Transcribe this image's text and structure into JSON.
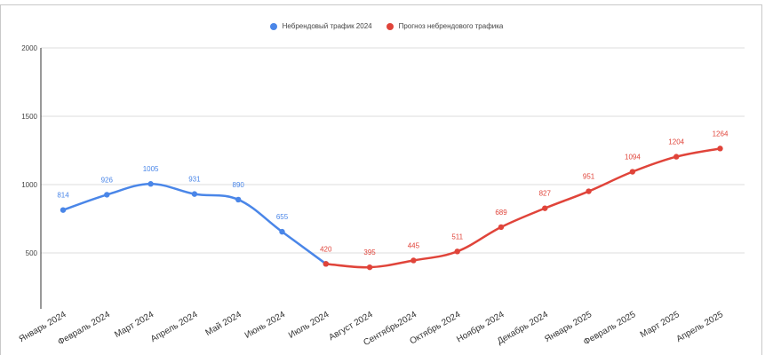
{
  "chart_data": {
    "type": "line",
    "categories": [
      "Январь 2024",
      "Февраль 2024",
      "Март 2024",
      "Апрель 2024",
      "Май 2024",
      "Июнь 2024",
      "Июль 2024",
      "Август 2024",
      "Сентябрь2024",
      "Октябрь 2024",
      "Ноябрь 2024",
      "Декабрь 2024",
      "Январь 2025",
      "Февраль 2025",
      "Март 2025",
      "Апрель 2025"
    ],
    "series": [
      {
        "name": "Небрендовый трафик 2024",
        "color": "#4a86e8",
        "values": [
          814,
          926,
          1005,
          931,
          890,
          655,
          420,
          null,
          null,
          null,
          null,
          null,
          null,
          null,
          null,
          null
        ],
        "labels": [
          "814",
          "926",
          "1005",
          "931",
          "890",
          "655",
          null,
          null,
          null,
          null,
          null,
          null,
          null,
          null,
          null,
          null
        ]
      },
      {
        "name": "Прогноз небрендового трафика",
        "color": "#e0443a",
        "values": [
          null,
          null,
          null,
          null,
          null,
          null,
          420,
          395,
          445,
          511,
          689,
          827,
          951,
          1094,
          1204,
          1264
        ],
        "labels": [
          null,
          null,
          null,
          null,
          null,
          null,
          "420",
          "395",
          "445",
          "511",
          "689",
          "827",
          "951",
          "1094",
          "1204",
          "1264"
        ]
      }
    ],
    "y_ticks": [
      "500",
      "1000",
      "1500",
      "2000"
    ],
    "ylim": [
      0,
      2000
    ],
    "grid": true,
    "legend_position": "top-center"
  }
}
